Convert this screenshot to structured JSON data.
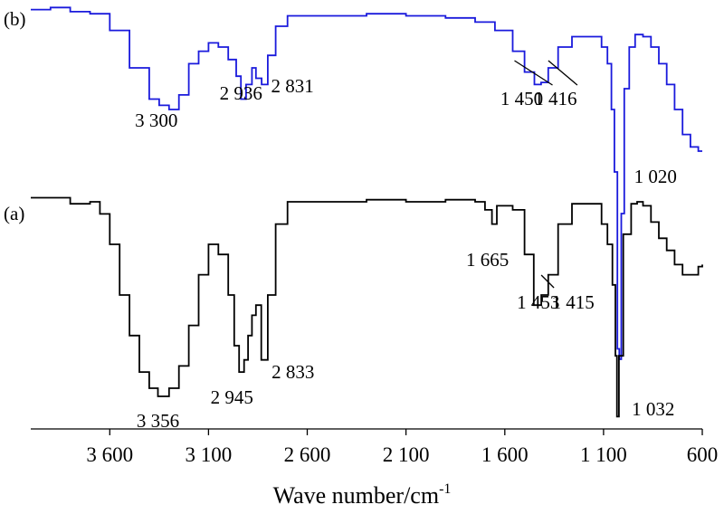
{
  "chart_data": {
    "type": "line",
    "title": "",
    "xlabel": "Wave number/cm",
    "xlabel_superscript": "-1",
    "ylabel": "",
    "xlim": [
      4000,
      600
    ],
    "x_reversed": true,
    "x_ticks": [
      {
        "value": 3600,
        "label": "3 600"
      },
      {
        "value": 3100,
        "label": "3 100"
      },
      {
        "value": 2600,
        "label": "2 600"
      },
      {
        "value": 2100,
        "label": "2 100"
      },
      {
        "value": 1600,
        "label": "1 600"
      },
      {
        "value": 1100,
        "label": "1 100"
      },
      {
        "value": 600,
        "label": "600"
      }
    ],
    "grid": false,
    "series": [
      {
        "name": "(b)",
        "color": "#1a1adc",
        "points": [
          [
            4000,
            0.98
          ],
          [
            3900,
            0.99
          ],
          [
            3800,
            0.97
          ],
          [
            3700,
            0.96
          ],
          [
            3600,
            0.88
          ],
          [
            3500,
            0.7
          ],
          [
            3400,
            0.55
          ],
          [
            3350,
            0.52
          ],
          [
            3300,
            0.5
          ],
          [
            3250,
            0.57
          ],
          [
            3200,
            0.72
          ],
          [
            3150,
            0.78
          ],
          [
            3100,
            0.82
          ],
          [
            3050,
            0.8
          ],
          [
            3000,
            0.74
          ],
          [
            2960,
            0.66
          ],
          [
            2936,
            0.55
          ],
          [
            2910,
            0.62
          ],
          [
            2880,
            0.7
          ],
          [
            2860,
            0.65
          ],
          [
            2831,
            0.62
          ],
          [
            2800,
            0.76
          ],
          [
            2760,
            0.9
          ],
          [
            2700,
            0.95
          ],
          [
            2500,
            0.95
          ],
          [
            2300,
            0.96
          ],
          [
            2100,
            0.95
          ],
          [
            1900,
            0.94
          ],
          [
            1750,
            0.92
          ],
          [
            1650,
            0.88
          ],
          [
            1560,
            0.78
          ],
          [
            1500,
            0.68
          ],
          [
            1450,
            0.62
          ],
          [
            1416,
            0.63
          ],
          [
            1380,
            0.7
          ],
          [
            1330,
            0.8
          ],
          [
            1260,
            0.85
          ],
          [
            1150,
            0.85
          ],
          [
            1110,
            0.8
          ],
          [
            1080,
            0.72
          ],
          [
            1060,
            0.5
          ],
          [
            1045,
            0.2
          ],
          [
            1030,
            -0.65
          ],
          [
            1020,
            -0.7
          ],
          [
            1010,
            0.0
          ],
          [
            995,
            0.6
          ],
          [
            970,
            0.8
          ],
          [
            940,
            0.86
          ],
          [
            900,
            0.85
          ],
          [
            860,
            0.8
          ],
          [
            820,
            0.72
          ],
          [
            780,
            0.62
          ],
          [
            740,
            0.5
          ],
          [
            700,
            0.38
          ],
          [
            660,
            0.32
          ],
          [
            620,
            0.3
          ],
          [
            600,
            0.3
          ]
        ],
        "annotations": [
          {
            "label": "3 300",
            "x": 3300
          },
          {
            "label": "2 936",
            "x": 2936
          },
          {
            "label": "2 831",
            "x": 2831
          },
          {
            "label": "1 450",
            "x": 1450
          },
          {
            "label": "1 416",
            "x": 1416
          },
          {
            "label": "1 020",
            "x": 1020
          }
        ]
      },
      {
        "name": "(a)",
        "color": "#000000",
        "points": [
          [
            4000,
            0.98
          ],
          [
            3900,
            0.98
          ],
          [
            3800,
            0.95
          ],
          [
            3700,
            0.96
          ],
          [
            3650,
            0.9
          ],
          [
            3600,
            0.75
          ],
          [
            3550,
            0.5
          ],
          [
            3500,
            0.3
          ],
          [
            3450,
            0.12
          ],
          [
            3400,
            0.04
          ],
          [
            3356,
            0.0
          ],
          [
            3300,
            0.04
          ],
          [
            3250,
            0.15
          ],
          [
            3200,
            0.35
          ],
          [
            3150,
            0.6
          ],
          [
            3100,
            0.75
          ],
          [
            3050,
            0.7
          ],
          [
            3000,
            0.5
          ],
          [
            2970,
            0.25
          ],
          [
            2945,
            0.12
          ],
          [
            2920,
            0.18
          ],
          [
            2900,
            0.3
          ],
          [
            2880,
            0.4
          ],
          [
            2860,
            0.45
          ],
          [
            2833,
            0.18
          ],
          [
            2800,
            0.5
          ],
          [
            2760,
            0.85
          ],
          [
            2700,
            0.96
          ],
          [
            2500,
            0.96
          ],
          [
            2300,
            0.97
          ],
          [
            2100,
            0.96
          ],
          [
            1900,
            0.97
          ],
          [
            1750,
            0.96
          ],
          [
            1700,
            0.92
          ],
          [
            1665,
            0.85
          ],
          [
            1640,
            0.94
          ],
          [
            1560,
            0.92
          ],
          [
            1500,
            0.7
          ],
          [
            1453,
            0.45
          ],
          [
            1415,
            0.5
          ],
          [
            1380,
            0.6
          ],
          [
            1330,
            0.85
          ],
          [
            1260,
            0.95
          ],
          [
            1150,
            0.95
          ],
          [
            1110,
            0.85
          ],
          [
            1080,
            0.75
          ],
          [
            1055,
            0.55
          ],
          [
            1040,
            0.2
          ],
          [
            1032,
            -0.1
          ],
          [
            1022,
            0.2
          ],
          [
            1000,
            0.8
          ],
          [
            960,
            0.95
          ],
          [
            930,
            0.96
          ],
          [
            900,
            0.94
          ],
          [
            860,
            0.86
          ],
          [
            820,
            0.78
          ],
          [
            780,
            0.72
          ],
          [
            740,
            0.65
          ],
          [
            700,
            0.6
          ],
          [
            660,
            0.6
          ],
          [
            620,
            0.64
          ],
          [
            600,
            0.65
          ]
        ],
        "annotations": [
          {
            "label": "3 356",
            "x": 3356
          },
          {
            "label": "2 945",
            "x": 2945
          },
          {
            "label": "2 833",
            "x": 2833
          },
          {
            "label": "1 665",
            "x": 1665,
            "color": "#e0201b"
          },
          {
            "label": "1 453",
            "x": 1453
          },
          {
            "label": "1 415",
            "x": 1415
          },
          {
            "label": "1 032",
            "x": 1032
          }
        ]
      }
    ],
    "legend": "none"
  }
}
